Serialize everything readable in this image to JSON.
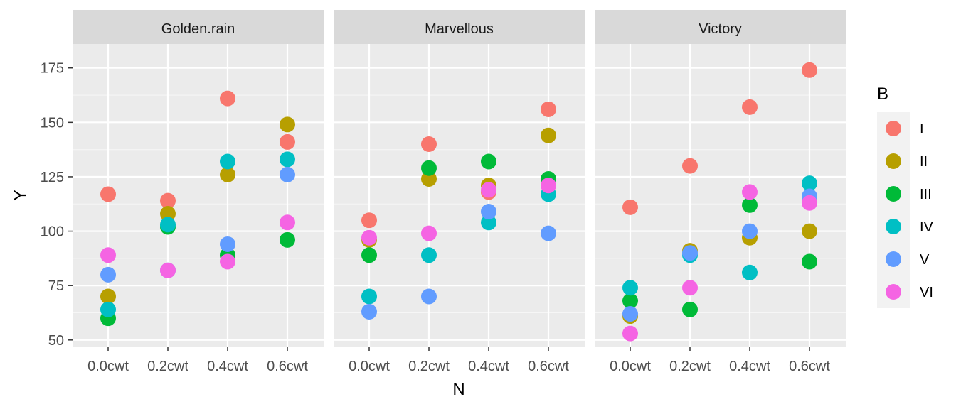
{
  "chart_data": {
    "type": "scatter",
    "facet_by": "V",
    "facets": [
      "Golden.rain",
      "Marvellous",
      "Victory"
    ],
    "categories": [
      "0.0cwt",
      "0.2cwt",
      "0.4cwt",
      "0.6cwt"
    ],
    "xlabel": "N",
    "ylabel": "Y",
    "ylim": [
      47,
      186
    ],
    "yticks": [
      50,
      75,
      100,
      125,
      150,
      175
    ],
    "grid": true,
    "legend": {
      "title": "B",
      "position": "right"
    },
    "series": [
      {
        "name": "I",
        "color": "#F8766D",
        "values": {
          "Golden.rain": [
            117,
            114,
            161,
            141
          ],
          "Marvellous": [
            105,
            140,
            118,
            156
          ],
          "Victory": [
            111,
            130,
            157,
            174
          ]
        }
      },
      {
        "name": "II",
        "color": "#B79F00",
        "values": {
          "Golden.rain": [
            70,
            108,
            126,
            149
          ],
          "Marvellous": [
            96,
            124,
            121,
            144
          ],
          "Victory": [
            61,
            91,
            97,
            100
          ]
        }
      },
      {
        "name": "III",
        "color": "#00BA38",
        "values": {
          "Golden.rain": [
            60,
            102,
            89,
            96
          ],
          "Marvellous": [
            89,
            129,
            132,
            124
          ],
          "Victory": [
            68,
            64,
            112,
            86
          ]
        }
      },
      {
        "name": "IV",
        "color": "#00BFC4",
        "values": {
          "Golden.rain": [
            64,
            103,
            132,
            133
          ],
          "Marvellous": [
            70,
            89,
            104,
            117
          ],
          "Victory": [
            74,
            89,
            81,
            122
          ]
        }
      },
      {
        "name": "V",
        "color": "#619CFF",
        "values": {
          "Golden.rain": [
            80,
            82,
            94,
            126
          ],
          "Marvellous": [
            63,
            70,
            109,
            99
          ],
          "Victory": [
            62,
            90,
            100,
            116
          ]
        }
      },
      {
        "name": "VI",
        "color": "#F564E3",
        "values": {
          "Golden.rain": [
            89,
            82,
            86,
            104
          ],
          "Marvellous": [
            97,
            99,
            119,
            121
          ],
          "Victory": [
            53,
            74,
            118,
            113
          ]
        }
      }
    ]
  },
  "colors": {
    "panel_background": "#EBEBEB",
    "strip_background": "#D9D9D9",
    "grid_major": "#FFFFFF",
    "legend_key_background": "#F2F2F2"
  }
}
